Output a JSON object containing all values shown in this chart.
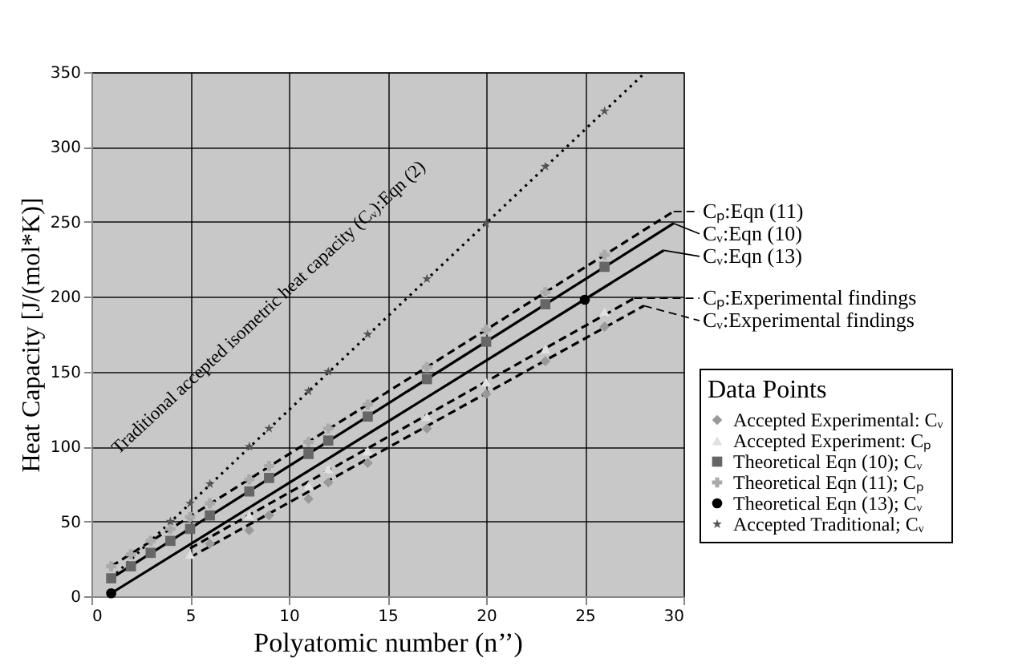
{
  "chart_data": {
    "type": "scatter",
    "xlabel": "Polyatomic number (n’’)",
    "ylabel": "Heat Capacity [J/(mol*K)]",
    "legend_title": "Data Points",
    "xlim": [
      0,
      30
    ],
    "xticks": [
      0,
      5,
      10,
      15,
      20,
      25,
      30
    ],
    "ylim": [
      0,
      350
    ],
    "yticks": [
      0,
      50,
      100,
      150,
      200,
      250,
      300,
      350
    ],
    "grid": true,
    "legend": "right",
    "annotations": [
      "Traditional accepted isometric heat capacity (Cᵥ):Eqn (2)"
    ],
    "series": [
      {
        "type": "line",
        "color": "#000000",
        "line_style": "dotted",
        "x": [
          1,
          28
        ],
        "values": [
          12,
          349
        ]
      },
      {
        "type": "line",
        "name": "Cₚ:Eqn (11)",
        "color": "#000000",
        "line_style": "dashed",
        "x": [
          1,
          29.5
        ],
        "values": [
          20,
          257
        ]
      },
      {
        "type": "line",
        "name": "Cᵥ:Eqn (10)",
        "color": "#000000",
        "line_style": "solid",
        "x": [
          1,
          29.5
        ],
        "values": [
          12,
          249
        ]
      },
      {
        "type": "line",
        "name": "Cᵥ:Eqn (13)",
        "color": "#000000",
        "line_style": "solid",
        "x": [
          1,
          29
        ],
        "values": [
          2,
          231
        ]
      },
      {
        "type": "line",
        "name": "Cₚ:Experimental findings",
        "color": "#000000",
        "line_style": "dashed",
        "x": [
          5,
          27.5
        ],
        "values": [
          32,
          199
        ]
      },
      {
        "type": "line",
        "name": "Cᵥ:Experimental findings",
        "color": "#000000",
        "line_style": "dashed",
        "x": [
          5,
          28
        ],
        "values": [
          26,
          194
        ]
      },
      {
        "name": "Accepted Experimental: Cᵥ",
        "color": "#999999",
        "marker": "diamond",
        "x": [
          6,
          8,
          9,
          11,
          12,
          14,
          17,
          20,
          23,
          26
        ],
        "values": [
          35,
          44,
          54,
          65,
          76,
          89,
          112,
          135,
          157,
          180
        ]
      },
      {
        "name": "Accepted Experiment: Cₚ",
        "color": "#e0e0e0",
        "marker": "triangle",
        "x": [
          5,
          8,
          11,
          12,
          14,
          17,
          20,
          23,
          26
        ],
        "values": [
          28,
          54,
          74,
          85,
          97,
          120,
          143,
          165,
          190
        ]
      },
      {
        "name": "Theoretical Eqn (10); Cᵥ",
        "color": "#666666",
        "marker": "square",
        "x": [
          1,
          2,
          3,
          4,
          5,
          6,
          8,
          9,
          11,
          12,
          14,
          17,
          20,
          23,
          26
        ],
        "values": [
          12,
          20,
          29,
          37,
          45,
          54,
          70,
          79,
          95,
          104,
          120,
          145,
          170,
          195,
          220
        ]
      },
      {
        "name": "Theoretical Eqn (11); Cₚ",
        "color": "#aaaaaa",
        "marker": "cross",
        "x": [
          1,
          2,
          3,
          4,
          5,
          6,
          8,
          9,
          11,
          12,
          14,
          17,
          20,
          23,
          26
        ],
        "values": [
          20,
          28,
          37,
          45,
          53,
          62,
          78,
          87,
          103,
          112,
          128,
          153,
          178,
          203,
          228
        ]
      },
      {
        "name": "Theoretical Eqn (13); Cᵥ",
        "color": "#000000",
        "marker": "circle",
        "x": [
          1,
          25
        ],
        "values": [
          2,
          198
        ]
      },
      {
        "name": "Accepted Traditional; Cᵥ",
        "color": "#555555",
        "marker": "star",
        "x": [
          4,
          5,
          6,
          8,
          9,
          11,
          12,
          14,
          17,
          20,
          23,
          26
        ],
        "values": [
          50,
          62,
          75,
          100,
          112,
          137,
          150,
          175,
          212,
          249,
          287,
          324
        ]
      }
    ]
  }
}
